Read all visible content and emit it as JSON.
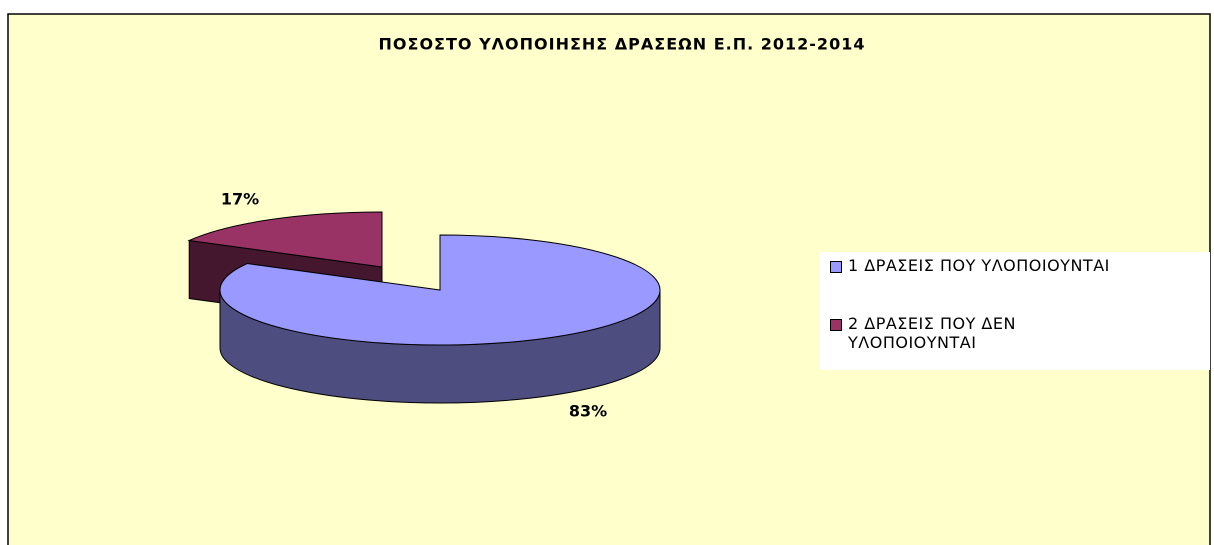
{
  "chart_data": {
    "type": "pie",
    "title": "ΠΟΣΟΣΤΟ ΥΛΟΠΟΙΗΣΗΣ ΔΡΑΣΕΩΝ Ε.Π.  2012-2014",
    "categories": [
      "1 ΔΡΑΣΕΙΣ ΠΟΥ  ΥΛΟΠΟΙΟΥΝΤΑΙ",
      "2 ΔΡΑΣΕΙΣ ΠΟΥ ΔΕΝ ΥΛΟΠΟΙΟΥΝΤΑΙ"
    ],
    "values": [
      83,
      17
    ],
    "value_labels": [
      "83%",
      "17%"
    ],
    "colors": [
      "#9999ff",
      "#993366"
    ],
    "legend": "right"
  }
}
